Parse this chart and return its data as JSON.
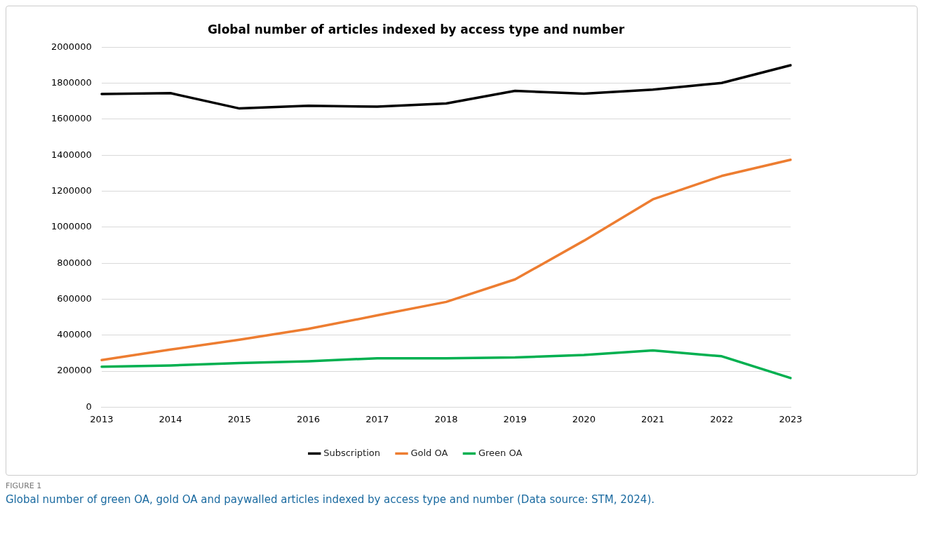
{
  "chart_data": {
    "type": "line",
    "title": "Global number of articles indexed by access type and number",
    "categories": [
      "2013",
      "2014",
      "2015",
      "2016",
      "2017",
      "2018",
      "2019",
      "2020",
      "2021",
      "2022",
      "2023"
    ],
    "series": [
      {
        "name": "Subscription",
        "color": "#000000",
        "values": [
          1740000,
          1745000,
          1660000,
          1675000,
          1670000,
          1688000,
          1758000,
          1742000,
          1765000,
          1802000,
          1900000
        ]
      },
      {
        "name": "Gold OA",
        "color": "#ed7d31",
        "values": [
          262000,
          320000,
          375000,
          435000,
          510000,
          585000,
          710000,
          925000,
          1155000,
          1285000,
          1375000
        ]
      },
      {
        "name": "Green OA",
        "color": "#00b050",
        "values": [
          225000,
          232000,
          245000,
          255000,
          272000,
          272000,
          276000,
          290000,
          315000,
          283000,
          162000
        ]
      }
    ],
    "ylim": [
      0,
      2000000
    ],
    "yticks": [
      0,
      200000,
      400000,
      600000,
      800000,
      1000000,
      1200000,
      1400000,
      1600000,
      1800000,
      2000000
    ],
    "grid": "y",
    "legend": "bottom",
    "marker": "none",
    "line_style": "solid",
    "annotations": [
      "FIGURE 1",
      "Global number of green OA, gold OA and paywalled articles indexed by access type and number (Data source: STM, 2024)."
    ]
  }
}
